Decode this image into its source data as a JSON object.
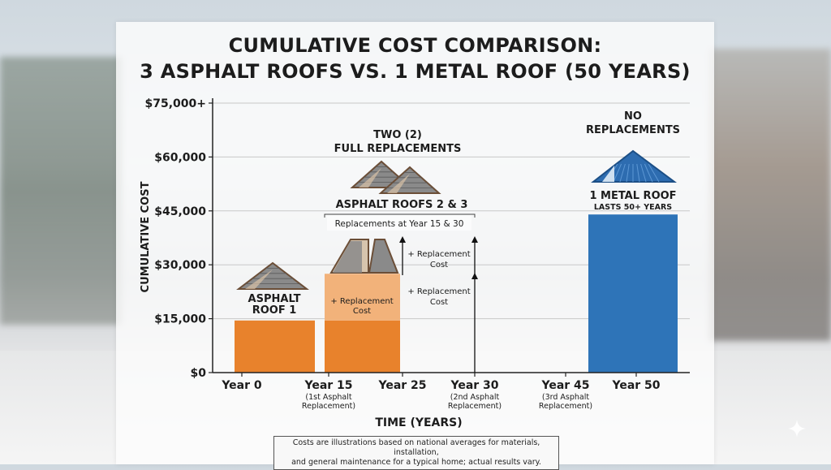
{
  "title_line1": "CUMULATIVE COST COMPARISON:",
  "title_line2": "3 ASPHALT ROOFS VS. 1 METAL ROOF (50 YEARS)",
  "footnote_line1": "Costs are illustrations based on national averages for materials, installation,",
  "footnote_line2": "and general maintenance for a typical home; actual results vary.",
  "colors": {
    "asphalt": "#e8822c",
    "asphalt_light": "#f2b27a",
    "metal": "#2e74b8",
    "shingle": "#8a8a8a",
    "roof_edge": "#6b4e37"
  },
  "icons": [
    "asphalt-roof-icon",
    "asphalt-roof-split-icon",
    "double-asphalt-roof-icon",
    "metal-roof-icon",
    "sparkle-icon"
  ],
  "chart_data": {
    "type": "bar",
    "title": "CUMULATIVE COST COMPARISON: 3 ASPHALT ROOFS VS. 1 METAL ROOF (50 YEARS)",
    "xlabel": "TIME (YEARS)",
    "ylabel": "CUMULATIVE COST",
    "ylim": [
      0,
      75000
    ],
    "ytick_labels": [
      "$0",
      "$15,000",
      "$30,000",
      "$45,000",
      "$60,000",
      "$75,000+"
    ],
    "ytick_values": [
      0,
      15000,
      30000,
      45000,
      60000,
      75000
    ],
    "grid": true,
    "x_ticks": [
      {
        "label": "Year 0",
        "sub": "",
        "year": 0
      },
      {
        "label": "Year 15",
        "sub": "(1st Asphalt Replacement)",
        "sub1": "(1st Asphalt",
        "sub2": "Replacement)",
        "year": 15
      },
      {
        "label": "Year 25",
        "sub": "",
        "year": 25
      },
      {
        "label": "Year 30",
        "sub": "(2nd Asphalt Replacement)",
        "sub1": "(2nd Asphalt",
        "sub2": "Replacement)",
        "year": 30
      },
      {
        "label": "Year 45",
        "sub": "(3rd Asphalt Replacement)",
        "sub1": "(3rd Asphalt",
        "sub2": "Replacement)",
        "year": 45
      },
      {
        "label": "Year 50",
        "sub": "",
        "year": 50
      }
    ],
    "bars": [
      {
        "name": "Asphalt Roof 1",
        "x_start": 0,
        "x_end": 15,
        "value": 14500,
        "color": "asphalt"
      },
      {
        "name": "Asphalt Roofs 2 & 3",
        "x_start": 15,
        "x_end": 25,
        "value": 27500,
        "base_value": 14500,
        "color": "asphalt"
      },
      {
        "name": "1 Metal Roof",
        "x_start": 45,
        "x_end": 50,
        "value": 44000,
        "color": "metal"
      }
    ],
    "annotations": {
      "asphalt1_label_1": "ASPHALT",
      "asphalt1_label_2": "ROOF 1",
      "replacement_in_bar_1": "+ Replacement",
      "replacement_in_bar_2": "Cost",
      "two_replacements_1": "TWO (2)",
      "two_replacements_2": "FULL REPLACEMENTS",
      "asphalt23_label": "ASPHALT ROOFS 2 & 3",
      "replacement_years": "Replacements at Year 15 & 30",
      "arrow_upper_1": "+ Replacement",
      "arrow_upper_2": "Cost",
      "arrow_lower_1": "+ Replacement",
      "arrow_lower_2": "Cost",
      "no_replacements_1": "NO",
      "no_replacements_2": "REPLACEMENTS",
      "metal_label_1": "1 METAL ROOF",
      "metal_label_2": "LASTS 50+ YEARS"
    }
  }
}
